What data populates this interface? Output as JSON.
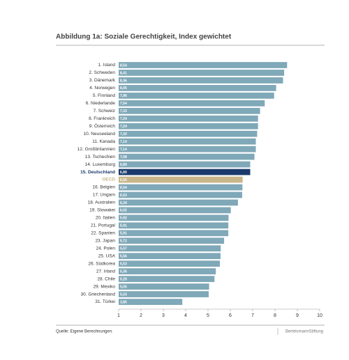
{
  "chart_data": {
    "type": "barh",
    "title": "Abbildung 1a: Soziale Gerechtigkeit, Index gewichtet",
    "categories": [
      "1. Island",
      "2. Schweden",
      "3. Dänemark",
      "4. Norwegen",
      "5. Finnland",
      "6. Niederlande",
      "7. Schweiz",
      "8. Frankreich",
      "9. Österreich",
      "10. Neuseeland",
      "11. Kanada",
      "12. Großbritannien",
      "13. Tschechien",
      "14. Luxemburg",
      "15. Deutschland",
      "OECD",
      "16. Belgien",
      "17. Ungarn",
      "18. Australien",
      "19. Slowakei",
      "20. Italien",
      "21. Portugal",
      "22. Spanien",
      "23. Japan",
      "24. Polen",
      "25. USA",
      "26. Südkorea",
      "27. Irland",
      "28. Chile",
      "29. Mexiko",
      "30. Griechenland",
      "31. Türkei"
    ],
    "values": [
      8.54,
      8.41,
      8.36,
      8.05,
      7.96,
      7.54,
      7.33,
      7.24,
      7.24,
      7.2,
      7.14,
      7.14,
      7.08,
      6.89,
      6.89,
      6.55,
      6.54,
      6.53,
      6.34,
      6.02,
      5.92,
      5.91,
      5.91,
      5.72,
      5.57,
      5.56,
      5.53,
      5.35,
      5.29,
      5.05,
      5.03,
      3.85
    ],
    "value_labels": [
      "8,54",
      "8,41",
      "8,36",
      "8,05",
      "7,96",
      "7,54",
      "7,33",
      "7,24",
      "7,24",
      "7,20",
      "7,14",
      "7,14",
      "7,08",
      "6,89",
      "6,89",
      "6,55",
      "6,54",
      "6,53",
      "6,34",
      "6,02",
      "5,92",
      "5,91",
      "5,91",
      "5,72",
      "5,57",
      "5,56",
      "5,53",
      "5,35",
      "5,29",
      "5,05",
      "5,03",
      "3,85"
    ],
    "color": "#7fa8b8",
    "colors": [
      "#7fa8b8",
      "#7fa8b8",
      "#7fa8b8",
      "#7fa8b8",
      "#7fa8b8",
      "#7fa8b8",
      "#7fa8b8",
      "#7fa8b8",
      "#7fa8b8",
      "#7fa8b8",
      "#7fa8b8",
      "#7fa8b8",
      "#7fa8b8",
      "#7fa8b8",
      "#1b3a6b",
      "#c8b58a",
      "#7fa8b8",
      "#7fa8b8",
      "#7fa8b8",
      "#7fa8b8",
      "#7fa8b8",
      "#7fa8b8",
      "#7fa8b8",
      "#7fa8b8",
      "#7fa8b8",
      "#7fa8b8",
      "#7fa8b8",
      "#7fa8b8",
      "#7fa8b8",
      "#7fa8b8",
      "#7fa8b8",
      "#7fa8b8"
    ],
    "xlim": [
      1,
      10
    ],
    "xticks": [
      1,
      2,
      3,
      4,
      5,
      6,
      7,
      8,
      9,
      10
    ],
    "source": "Quelle: Eigene Berechnungen.",
    "brand": "BertelsmannStiftung"
  }
}
